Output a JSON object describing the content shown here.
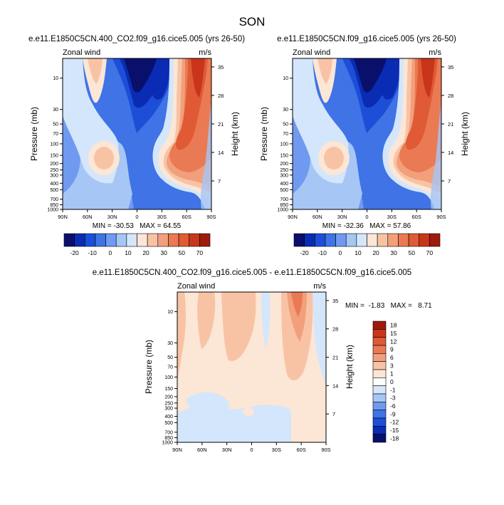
{
  "figure": {
    "title": "SON"
  },
  "colors": {
    "blues": [
      "#08106b",
      "#0a2bb4",
      "#1c4ed8",
      "#3f73e6",
      "#6f9af0",
      "#a6c6f5",
      "#d4e6fb"
    ],
    "reds": [
      "#fce6d6",
      "#f8c3a5",
      "#f29f7c",
      "#ea7a53",
      "#df5a35",
      "#c9351a",
      "#9e1b0c"
    ]
  },
  "chart_data": [
    {
      "type": "heatmap",
      "id": "panel1",
      "title": "e.e11.E1850C5CN.400_CO2.f09_g16.cice5.005 (yrs 26-50)",
      "left_label": "Zonal wind",
      "right_label": "m/s",
      "ylabel": "Pressure (mb)",
      "ylabel_right": "Height (km)",
      "x_ticks": [
        "90N",
        "60N",
        "30N",
        "0",
        "30S",
        "60S",
        "90S"
      ],
      "x_values": [
        90,
        60,
        30,
        0,
        -30,
        -60,
        -90
      ],
      "y_ticks": [
        "10",
        "30",
        "50",
        "70",
        "100",
        "150",
        "200",
        "250",
        "300",
        "400",
        "500",
        "700",
        "850",
        "1000"
      ],
      "y_values": [
        10,
        30,
        50,
        70,
        100,
        150,
        200,
        250,
        300,
        400,
        500,
        700,
        850,
        1000
      ],
      "height_ticks": [
        "35",
        "28",
        "21",
        "14",
        "7"
      ],
      "height_values": [
        35,
        28,
        21,
        14,
        7
      ],
      "ylim": [
        1000,
        5
      ],
      "stats": "MIN = -30.53   MAX = 64.55",
      "min": -30.53,
      "max": 64.55,
      "colorbar_labels": [
        "-20",
        "-10",
        "0",
        "10",
        "20",
        "30",
        "50",
        "70"
      ],
      "colorbar_levels": [
        -20,
        -10,
        0,
        10,
        20,
        30,
        50,
        70
      ]
    },
    {
      "type": "heatmap",
      "id": "panel2",
      "title": "e.e11.E1850C5CN.f09_g16.cice5.005 (yrs 26-50)",
      "left_label": "Zonal wind",
      "right_label": "m/s",
      "ylabel": "Pressure (mb)",
      "ylabel_right": "Height (km)",
      "x_ticks": [
        "90N",
        "60N",
        "30N",
        "0",
        "30S",
        "60S",
        "90S"
      ],
      "x_values": [
        90,
        60,
        30,
        0,
        -30,
        -60,
        -90
      ],
      "y_ticks": [
        "10",
        "30",
        "50",
        "70",
        "100",
        "150",
        "200",
        "250",
        "300",
        "400",
        "500",
        "700",
        "850",
        "1000"
      ],
      "y_values": [
        10,
        30,
        50,
        70,
        100,
        150,
        200,
        250,
        300,
        400,
        500,
        700,
        850,
        1000
      ],
      "height_ticks": [
        "35",
        "28",
        "21",
        "14",
        "7"
      ],
      "height_values": [
        35,
        28,
        21,
        14,
        7
      ],
      "ylim": [
        1000,
        5
      ],
      "stats": "MIN = -32.36   MAX = 57.86",
      "min": -32.36,
      "max": 57.86,
      "colorbar_labels": [
        "-20",
        "-10",
        "0",
        "10",
        "20",
        "30",
        "50",
        "70"
      ],
      "colorbar_levels": [
        -20,
        -10,
        0,
        10,
        20,
        30,
        50,
        70
      ]
    },
    {
      "type": "heatmap",
      "id": "panel3",
      "title": "e.e11.E1850C5CN.400_CO2.f09_g16.cice5.005 - e.e11.E1850C5CN.f09_g16.cice5.005",
      "left_label": "Zonal wind",
      "right_label": "m/s",
      "ylabel": "Pressure (mb)",
      "ylabel_right": "Height (km)",
      "x_ticks": [
        "90N",
        "60N",
        "30N",
        "0",
        "30S",
        "60S",
        "90S"
      ],
      "x_values": [
        90,
        60,
        30,
        0,
        -30,
        -60,
        -90
      ],
      "y_ticks": [
        "10",
        "30",
        "50",
        "70",
        "100",
        "150",
        "200",
        "250",
        "300",
        "400",
        "500",
        "700",
        "850",
        "1000"
      ],
      "y_values": [
        10,
        30,
        50,
        70,
        100,
        150,
        200,
        250,
        300,
        400,
        500,
        700,
        850,
        1000
      ],
      "height_ticks": [
        "35",
        "28",
        "21",
        "14",
        "7"
      ],
      "height_values": [
        35,
        28,
        21,
        14,
        7
      ],
      "ylim": [
        1000,
        5
      ],
      "stats": "MIN =  -1.83   MAX =   8.71",
      "min": -1.83,
      "max": 8.71,
      "colorbar_labels": [
        "18",
        "15",
        "12",
        "9",
        "6",
        "3",
        "1",
        "0",
        "-1",
        "-3",
        "-6",
        "-9",
        "-12",
        "-15",
        "-18"
      ],
      "colorbar_levels": [
        18,
        15,
        12,
        9,
        6,
        3,
        1,
        0,
        -1,
        -3,
        -6,
        -9,
        -12,
        -15,
        -18
      ]
    }
  ]
}
